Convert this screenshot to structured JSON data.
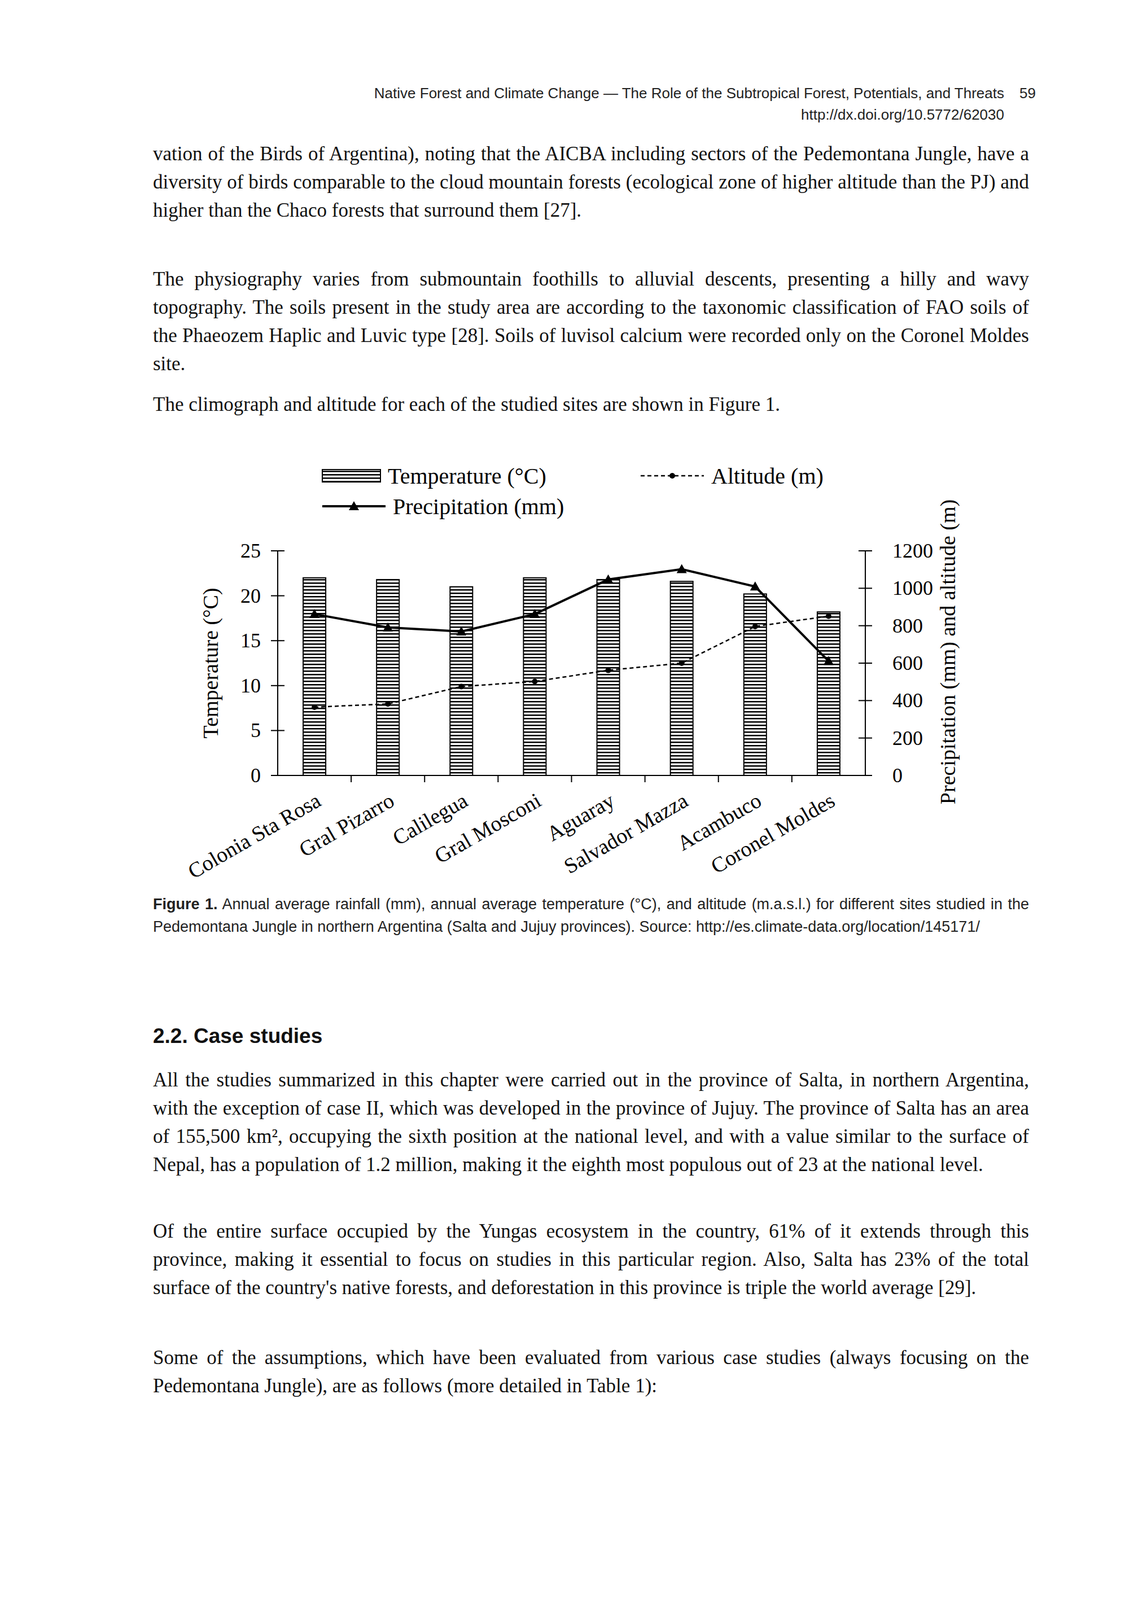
{
  "header": {
    "title": "Native Forest and Climate Change — The Role of the Subtropical Forest, Potentials, and Threats",
    "doi": "http://dx.doi.org/10.5772/62030",
    "page": "59"
  },
  "body_before": [
    "vation of the Birds of Argentina), noting that the AICBA including sectors of the Pedemontana Jungle, have a diversity of birds comparable to the cloud mountain forests (ecological zone of higher altitude than the PJ) and higher than the Chaco forests that surround them [27].",
    "The physiography varies from submountain foothills to alluvial descents, presenting a hilly and wavy topography. The soils present in the study area are according to the taxonomic classification of FAO soils of the Phaeozem Haplic and Luvic type [28]. Soils of luvisol calcium were recorded only on the Coronel Moldes site.",
    "The climograph and altitude for each of the studied sites are shown in Figure 1."
  ],
  "chart_data": {
    "type": "bar",
    "categories": [
      "Colonia Sta Rosa",
      "Gral Pizarro",
      "Calilegua",
      "Gral Mosconi",
      "Aguaray",
      "Salvador Mazza",
      "Acambuco",
      "Coronel Moldes"
    ],
    "series": [
      {
        "name": "Temperature (°C)",
        "type": "bar",
        "color": "#000000",
        "values": [
          22,
          21.8,
          21,
          22,
          21.8,
          21.6,
          20.2,
          18.2
        ]
      },
      {
        "name": "Precipitation (mm)",
        "type": "line",
        "axis": "y2",
        "color": "#000000",
        "marker": "triangle",
        "line_style": "solid",
        "values": [
          862,
          791,
          769,
          862,
          1047,
          1102,
          1009,
          611
        ]
      },
      {
        "name": "Altitude (m)",
        "type": "line",
        "axis": "y2",
        "color": "#000000",
        "marker": "circle",
        "line_style": "dashed",
        "values": [
          365,
          382,
          475,
          502,
          562,
          600,
          796,
          851
        ]
      }
    ],
    "ylabel": "Temperature (°C)",
    "y2label": "Precipitation (mm) and altitude (m)",
    "ylim": [
      0,
      25
    ],
    "yticks": [
      0,
      5,
      10,
      15,
      20,
      25
    ],
    "y2lim": [
      0,
      1200
    ],
    "y2ticks": [
      0,
      200,
      400,
      600,
      800,
      1000,
      1200
    ],
    "grid": false,
    "legend": "top"
  },
  "caption": {
    "label": "Figure 1.",
    "text": "Annual average rainfall (mm), annual average temperature (°C), and altitude (m.a.s.l.) for different sites studied in the Pedemontana Jungle in northern Argentina (Salta and Jujuy provinces). Source: http://es.climate-data.org/location/145171/"
  },
  "section": "2.2. Case studies",
  "body_after": [
    "All the studies summarized in this chapter were carried out in the province of Salta, in northern Argentina, with the exception of case II, which was developed in the province of Jujuy. The province of Salta has an area of 155,500 km², occupying the sixth position at the national level, and with a value similar to the surface of Nepal, has a population of 1.2 million, making it the eighth most populous out of 23 at the national level.",
    "Of the entire surface occupied by the Yungas ecosystem in the country, 61% of it extends through this province, making it essential to focus on studies in this particular region. Also, Salta has 23% of the total surface of the country's native forests, and deforestation in this province is triple the world average [29].",
    "Some of the assumptions, which have been evaluated from various case studies (always focusing on the Pedemontana Jungle), are as follows (more detailed in Table 1):"
  ]
}
